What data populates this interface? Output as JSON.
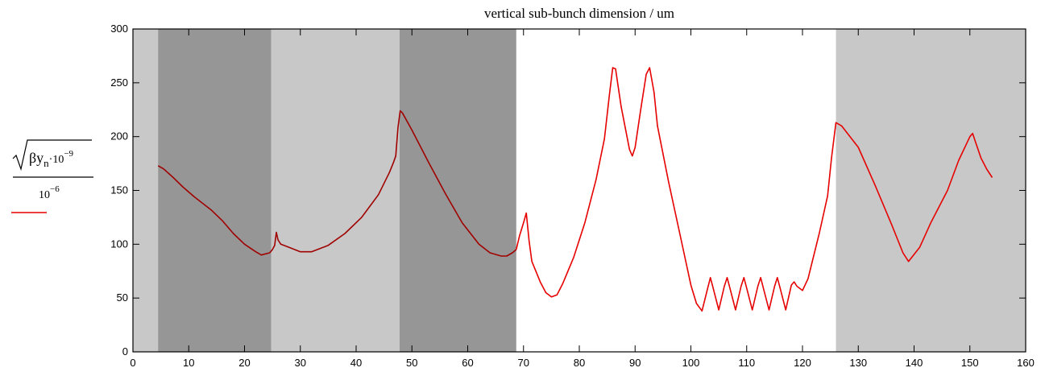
{
  "chart_data": {
    "type": "line",
    "title": "vertical sub-bunch dimension / um",
    "ylabel": {
      "symbol": "βy",
      "subscript": "n",
      "multiplier": "·10",
      "mult_exp": "−9",
      "denominator": "10",
      "den_exp": "−6"
    },
    "xlim": [
      0,
      160
    ],
    "ylim": [
      0,
      300
    ],
    "x_ticks": [
      0,
      10,
      20,
      30,
      40,
      50,
      60,
      70,
      80,
      90,
      100,
      110,
      120,
      130,
      140,
      150,
      160
    ],
    "y_ticks": [
      0,
      50,
      100,
      150,
      200,
      250,
      300
    ],
    "grid": false,
    "shaded_bands": [
      {
        "x0": 0,
        "x1": 4.5,
        "color": "#c8c8c8"
      },
      {
        "x0": 4.5,
        "x1": 24.8,
        "color": "#969696"
      },
      {
        "x0": 24.8,
        "x1": 47.8,
        "color": "#c8c8c8"
      },
      {
        "x0": 47.8,
        "x1": 68.7,
        "color": "#969696"
      },
      {
        "x0": 126,
        "x1": 160,
        "color": "#c8c8c8"
      }
    ],
    "series": [
      {
        "color_dark": "#a00000",
        "color_light": "#e60000",
        "color_switch_x": 68.7,
        "points": [
          [
            4.5,
            173
          ],
          [
            5.5,
            170
          ],
          [
            7,
            163
          ],
          [
            9,
            153
          ],
          [
            11,
            144
          ],
          [
            13,
            136
          ],
          [
            14,
            132
          ],
          [
            16,
            122
          ],
          [
            18,
            110
          ],
          [
            20,
            100
          ],
          [
            22,
            93
          ],
          [
            23,
            90
          ],
          [
            24.5,
            92
          ],
          [
            25,
            95
          ],
          [
            25.4,
            99
          ],
          [
            25.7,
            111
          ],
          [
            26,
            104
          ],
          [
            26.5,
            100
          ],
          [
            28,
            97
          ],
          [
            30,
            93
          ],
          [
            32,
            93
          ],
          [
            35,
            99
          ],
          [
            38,
            110
          ],
          [
            41,
            125
          ],
          [
            44,
            146
          ],
          [
            46,
            167
          ],
          [
            46.7,
            176
          ],
          [
            47.1,
            182
          ],
          [
            47.5,
            208
          ],
          [
            47.9,
            224
          ],
          [
            48.3,
            222
          ],
          [
            50,
            206
          ],
          [
            53,
            176
          ],
          [
            56,
            147
          ],
          [
            59,
            120
          ],
          [
            62,
            100
          ],
          [
            64,
            92
          ],
          [
            66,
            89
          ],
          [
            67,
            89
          ],
          [
            68,
            92
          ],
          [
            68.7,
            95
          ],
          [
            69.3,
            108
          ],
          [
            70,
            120
          ],
          [
            70.5,
            129
          ],
          [
            71,
            103
          ],
          [
            71.5,
            84
          ],
          [
            73,
            65
          ],
          [
            74,
            55
          ],
          [
            75,
            51
          ],
          [
            76,
            53
          ],
          [
            77,
            63
          ],
          [
            79,
            88
          ],
          [
            81,
            120
          ],
          [
            83,
            160
          ],
          [
            84.5,
            198
          ],
          [
            85.4,
            239
          ],
          [
            86,
            264
          ],
          [
            86.5,
            263
          ],
          [
            87.5,
            228
          ],
          [
            89,
            188
          ],
          [
            89.5,
            182
          ],
          [
            90,
            190
          ],
          [
            91,
            225
          ],
          [
            92,
            258
          ],
          [
            92.6,
            264
          ],
          [
            93.4,
            241
          ],
          [
            94,
            210
          ],
          [
            96,
            158
          ],
          [
            98,
            110
          ],
          [
            100,
            62
          ],
          [
            101,
            45
          ],
          [
            102,
            38
          ],
          [
            103,
            59
          ],
          [
            103.5,
            69
          ],
          [
            104,
            59
          ],
          [
            105,
            39
          ],
          [
            106,
            61
          ],
          [
            106.5,
            69
          ],
          [
            107,
            59
          ],
          [
            108,
            39
          ],
          [
            109,
            61
          ],
          [
            109.5,
            69
          ],
          [
            110,
            59
          ],
          [
            111,
            39
          ],
          [
            112,
            61
          ],
          [
            112.5,
            69
          ],
          [
            113,
            59
          ],
          [
            114,
            39
          ],
          [
            115,
            61
          ],
          [
            115.5,
            69
          ],
          [
            116,
            59
          ],
          [
            117,
            39
          ],
          [
            118,
            62
          ],
          [
            118.5,
            65
          ],
          [
            119,
            61
          ],
          [
            120,
            57
          ],
          [
            121,
            68
          ],
          [
            123,
            110
          ],
          [
            124.5,
            145
          ],
          [
            125.2,
            180
          ],
          [
            126,
            213
          ],
          [
            127,
            210
          ],
          [
            130,
            190
          ],
          [
            133,
            155
          ],
          [
            136,
            118
          ],
          [
            138,
            92
          ],
          [
            139,
            84
          ],
          [
            141,
            97
          ],
          [
            143,
            120
          ],
          [
            146,
            150
          ],
          [
            148,
            178
          ],
          [
            150,
            200
          ],
          [
            150.5,
            203
          ],
          [
            151,
            195
          ],
          [
            152,
            180
          ],
          [
            153,
            170
          ],
          [
            154,
            162
          ]
        ]
      }
    ]
  }
}
